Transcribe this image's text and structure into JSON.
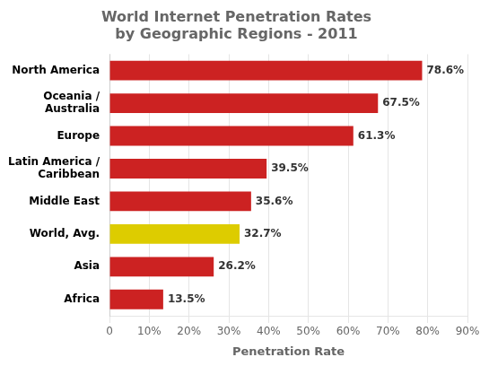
{
  "chart_data": {
    "type": "bar",
    "orientation": "horizontal",
    "title": "World Internet Penetration Rates\nby Geographic Regions - 2011",
    "categories": [
      "North America",
      "Oceania /\nAustralia",
      "Europe",
      "Latin America /\nCaribbean",
      "Middle East",
      "World, Avg.",
      "Asia",
      "Africa"
    ],
    "values": [
      78.6,
      67.5,
      61.3,
      39.5,
      35.6,
      32.7,
      26.2,
      13.5
    ],
    "value_labels": [
      "78.6%",
      "67.5%",
      "61.3%",
      "39.5%",
      "35.6%",
      "32.7%",
      "26.2%",
      "13.5%"
    ],
    "data_labels": true,
    "colors": [
      "#cc2222",
      "#cc2222",
      "#cc2222",
      "#cc2222",
      "#cc2222",
      "#ddcc00",
      "#cc2222",
      "#cc2222"
    ],
    "xlabel": "Penetration Rate",
    "xlim": [
      0,
      90
    ],
    "xticks": [
      0,
      {
        "value": 10,
        "label": "10%"
      },
      {
        "value": 20,
        "label": "20%"
      },
      {
        "value": 30,
        "label": "30%"
      },
      {
        "value": 40,
        "label": "40%"
      },
      {
        "value": 50,
        "label": "50%"
      },
      {
        "value": 60,
        "label": "60%"
      },
      {
        "value": 70,
        "label": "70%"
      },
      {
        "value": 80,
        "label": "80%"
      },
      {
        "value": 90,
        "label": "90%"
      }
    ],
    "grid": true
  }
}
